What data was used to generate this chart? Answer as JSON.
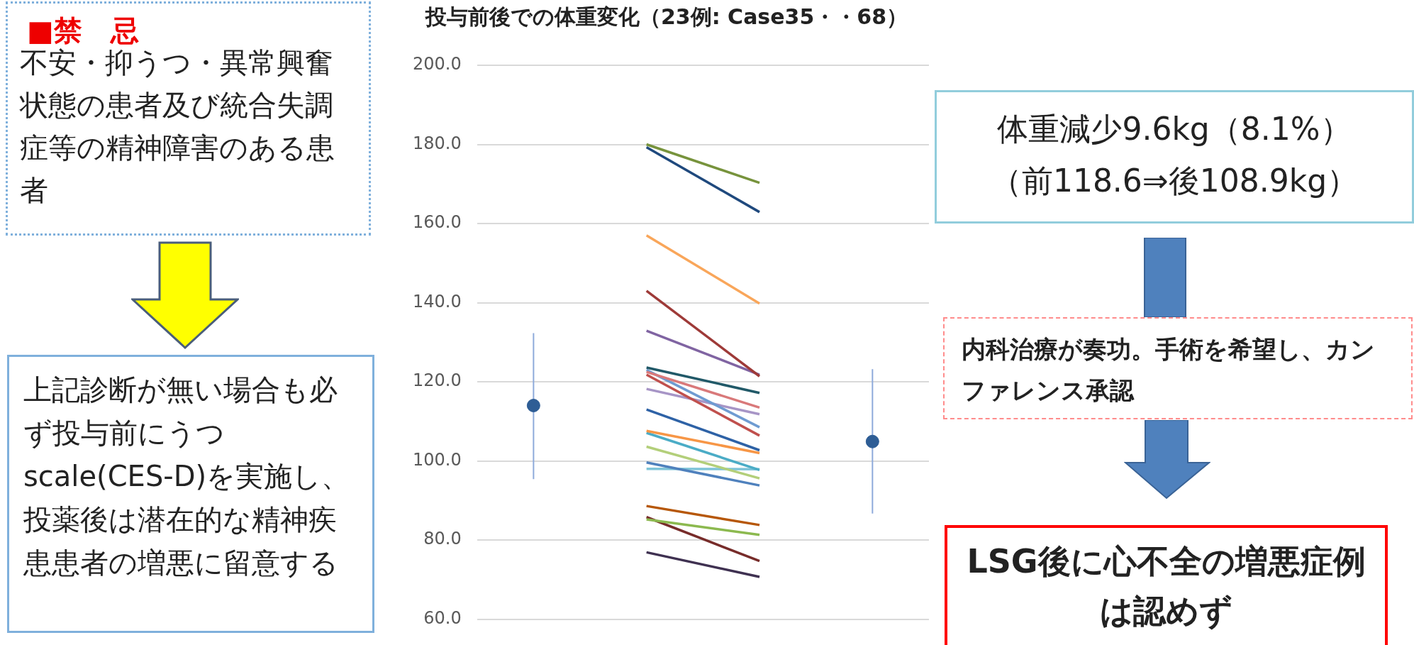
{
  "chart_data": {
    "type": "line",
    "title": "投与前後での体重変化（23例: Case35・・68）",
    "categories": [
      null,
      null,
      null,
      null
    ],
    "series": [
      {
        "color": "#77933c",
        "values": [
          null,
          180,
          170.3,
          null
        ]
      },
      {
        "color": "#1f497d",
        "values": [
          null,
          179.3,
          162.9,
          null
        ]
      },
      {
        "color": "#f9a65a",
        "values": [
          null,
          157,
          139.8,
          null
        ]
      },
      {
        "color": "#9e3a38",
        "values": [
          null,
          143,
          121.4,
          null
        ]
      },
      {
        "color": "#8064a2",
        "values": [
          null,
          132.9,
          121.8,
          null
        ]
      },
      {
        "color": "#215968",
        "values": [
          null,
          123.6,
          117.2,
          null
        ]
      },
      {
        "color": "#d9797a",
        "values": [
          null,
          122.5,
          113.5,
          null
        ]
      },
      {
        "color": "#6f9bd1",
        "values": [
          null,
          123,
          108.5,
          null
        ]
      },
      {
        "color": "#c0504d",
        "values": [
          null,
          121.8,
          106.4,
          null
        ]
      },
      {
        "color": "#a795c6",
        "values": [
          null,
          118.2,
          111.8,
          null
        ]
      },
      {
        "color": "#2e62a6",
        "values": [
          null,
          113,
          102.7,
          null
        ]
      },
      {
        "color": "#f79646",
        "values": [
          null,
          107.6,
          102,
          null
        ]
      },
      {
        "color": "#4bacc6",
        "values": [
          null,
          107.1,
          97.7,
          null
        ]
      },
      {
        "color": "#b3cf7a",
        "values": [
          null,
          103.6,
          95.6,
          null
        ]
      },
      {
        "color": "#4f81bd",
        "values": [
          null,
          99.6,
          93.8,
          null
        ]
      },
      {
        "color": "#7fc4d8",
        "values": [
          null,
          98,
          97.9,
          null
        ]
      },
      {
        "color": "#b65708",
        "values": [
          null,
          88.6,
          83.8,
          null
        ]
      },
      {
        "color": "#8cb94f",
        "values": [
          null,
          85.2,
          81.3,
          null
        ]
      },
      {
        "color": "#772c2a",
        "values": [
          null,
          85.8,
          74.7,
          null
        ]
      },
      {
        "color": "#3f3151",
        "values": [
          null,
          76.9,
          70.7,
          null
        ]
      },
      {
        "type": "scatter",
        "marker": "circle",
        "color": "#2e5d95",
        "values": [
          114,
          null,
          null,
          104.9
        ],
        "errors": [
          [
            95.4,
            132.3
          ],
          null,
          null,
          [
            86.7,
            123.2
          ]
        ]
      }
    ],
    "marker": "none",
    "grid": "y",
    "tick_labels": "y",
    "ylim": [
      60,
      200
    ],
    "yticks": [
      {
        "value": 60,
        "label": "60.0"
      },
      {
        "value": 80,
        "label": "80.0"
      },
      {
        "value": 100,
        "label": "100.0"
      },
      {
        "value": 120,
        "label": "120.0"
      },
      {
        "value": 140,
        "label": "140.0"
      },
      {
        "value": 160,
        "label": "160.0"
      },
      {
        "value": 180,
        "label": "180.0"
      },
      {
        "value": 200,
        "label": "200.0"
      }
    ],
    "annotations": [
      "■禁　忌",
      "不安・抑うつ・異常興奮状態の患者及び統合失調症等の精神障害のある患者",
      "上記診断が無い場合も必ず投与前にうつscale(CES-D)を実施し、投薬後は潜在的な精神疾患患者の増悪に留意する",
      "体重減少9.6kg（8.1%）",
      "（前118.6⇒後108.9kg）",
      "内科治療が奏功。手術を希望し、カンファレンス承認",
      "LSG後に心不全の増悪症例は認めず"
    ]
  }
}
